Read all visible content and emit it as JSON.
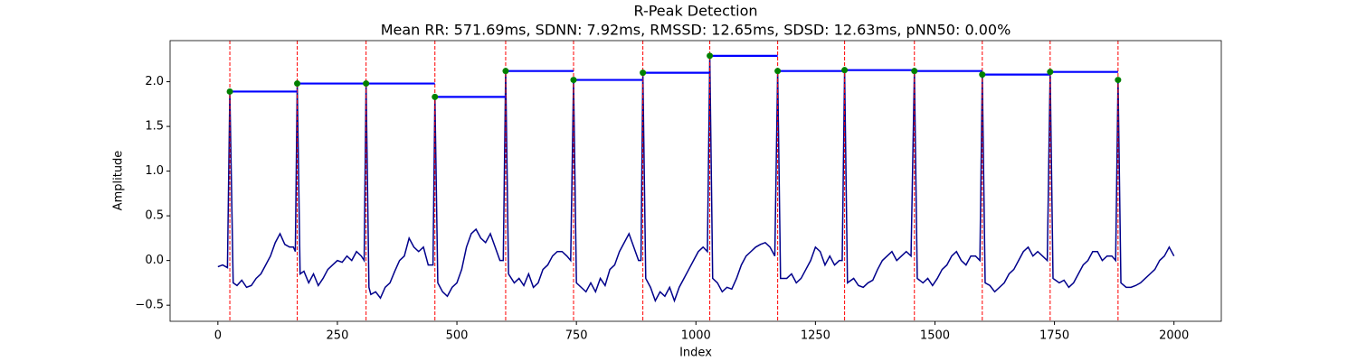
{
  "chart_data": {
    "type": "line",
    "title": "R-Peak Detection",
    "subtitle": "Mean RR: 571.69ms, SDNN: 7.92ms, RMSSD: 12.65ms, SDSD: 12.63ms, pNN50: 0.00%",
    "xlabel": "Index",
    "ylabel": "Amplitude",
    "xlim": [
      -100,
      2099
    ],
    "ylim": [
      -0.68,
      2.46
    ],
    "xticks": [
      0,
      250,
      500,
      750,
      1000,
      1250,
      1500,
      1750,
      2000
    ],
    "yticks": [
      {
        "value": -0.5,
        "label": "−0.5"
      },
      {
        "value": 0,
        "label": "0.0"
      },
      0.5,
      {
        "value": 1,
        "label": "1.0"
      },
      1.5,
      {
        "value": 2,
        "label": "2.0"
      }
    ],
    "signal": {
      "color": "#00008b",
      "x": [
        0,
        10,
        20,
        25,
        32,
        40,
        50,
        60,
        70,
        80,
        90,
        100,
        110,
        120,
        130,
        140,
        150,
        158,
        162,
        166,
        172,
        180,
        190,
        200,
        210,
        220,
        230,
        240,
        250,
        260,
        270,
        280,
        290,
        300,
        306,
        310,
        316,
        320,
        330,
        340,
        350,
        360,
        370,
        380,
        390,
        400,
        410,
        420,
        430,
        440,
        450,
        454,
        460,
        470,
        480,
        490,
        500,
        510,
        520,
        530,
        540,
        550,
        560,
        570,
        580,
        590,
        597,
        602,
        608,
        620,
        630,
        640,
        650,
        660,
        670,
        680,
        690,
        700,
        710,
        720,
        730,
        738,
        744,
        750,
        760,
        770,
        780,
        790,
        800,
        810,
        820,
        830,
        840,
        850,
        860,
        870,
        880,
        885,
        889,
        895,
        905,
        915,
        925,
        935,
        945,
        955,
        965,
        975,
        985,
        995,
        1005,
        1015,
        1024,
        1029,
        1035,
        1045,
        1055,
        1065,
        1075,
        1085,
        1095,
        1105,
        1115,
        1125,
        1135,
        1145,
        1155,
        1165,
        1171,
        1177,
        1190,
        1200,
        1210,
        1220,
        1230,
        1240,
        1250,
        1260,
        1270,
        1280,
        1290,
        1300,
        1306,
        1311,
        1317,
        1330,
        1340,
        1350,
        1360,
        1370,
        1380,
        1390,
        1400,
        1410,
        1420,
        1430,
        1440,
        1450,
        1457,
        1463,
        1475,
        1485,
        1495,
        1505,
        1515,
        1525,
        1535,
        1545,
        1555,
        1565,
        1575,
        1585,
        1594,
        1599,
        1605,
        1615,
        1625,
        1635,
        1645,
        1655,
        1665,
        1675,
        1685,
        1695,
        1705,
        1715,
        1725,
        1735,
        1741,
        1747,
        1760,
        1770,
        1780,
        1790,
        1800,
        1810,
        1820,
        1830,
        1840,
        1850,
        1860,
        1870,
        1878,
        1883,
        1889,
        1900,
        1910,
        1920,
        1930,
        1940,
        1950,
        1960,
        1970,
        1980,
        1990,
        2000
      ],
      "values": [
        -0.07,
        -0.05,
        -0.08,
        1.89,
        -0.25,
        -0.28,
        -0.22,
        -0.3,
        -0.28,
        -0.2,
        -0.15,
        -0.05,
        0.05,
        0.2,
        0.3,
        0.18,
        0.15,
        0.15,
        0.1,
        1.98,
        -0.15,
        -0.12,
        -0.25,
        -0.15,
        -0.28,
        -0.2,
        -0.1,
        -0.05,
        0,
        -0.02,
        0.05,
        0,
        0.1,
        0.05,
        0,
        1.98,
        -0.3,
        -0.38,
        -0.35,
        -0.42,
        -0.3,
        -0.25,
        -0.12,
        0,
        0.05,
        0.25,
        0.15,
        0.1,
        0.15,
        -0.05,
        -0.05,
        1.83,
        -0.25,
        -0.35,
        -0.4,
        -0.3,
        -0.25,
        -0.1,
        0.15,
        0.3,
        0.35,
        0.25,
        0.2,
        0.3,
        0.15,
        0,
        0,
        2.12,
        -0.15,
        -0.25,
        -0.2,
        -0.28,
        -0.15,
        -0.3,
        -0.25,
        -0.1,
        -0.05,
        0.05,
        0.1,
        0.1,
        0.05,
        0,
        2.02,
        -0.25,
        -0.3,
        -0.35,
        -0.25,
        -0.35,
        -0.2,
        -0.28,
        -0.1,
        -0.05,
        0.1,
        0.2,
        0.3,
        0.15,
        0,
        0,
        2.1,
        -0.2,
        -0.3,
        -0.45,
        -0.35,
        -0.4,
        -0.3,
        -0.45,
        -0.3,
        -0.2,
        -0.1,
        0,
        0.1,
        0.15,
        0.1,
        2.29,
        -0.2,
        -0.25,
        -0.35,
        -0.3,
        -0.32,
        -0.2,
        -0.05,
        0.05,
        0.1,
        0.15,
        0.18,
        0.2,
        0.15,
        0.05,
        2.12,
        -0.2,
        -0.2,
        -0.15,
        -0.25,
        -0.2,
        -0.1,
        0,
        0.15,
        0.1,
        -0.05,
        0.05,
        -0.05,
        0,
        0,
        2.13,
        -0.25,
        -0.2,
        -0.28,
        -0.3,
        -0.25,
        -0.22,
        -0.1,
        0,
        0.05,
        0.1,
        0,
        0.05,
        0.1,
        0.05,
        2.12,
        -0.2,
        -0.25,
        -0.2,
        -0.28,
        -0.2,
        -0.1,
        -0.05,
        0.05,
        0.1,
        0,
        -0.05,
        0.05,
        0.05,
        0,
        2.08,
        -0.25,
        -0.28,
        -0.35,
        -0.3,
        -0.25,
        -0.15,
        -0.1,
        0,
        0.1,
        0.15,
        0.05,
        0.1,
        0.05,
        0,
        2.11,
        -0.2,
        -0.25,
        -0.22,
        -0.3,
        -0.25,
        -0.15,
        -0.05,
        0,
        0.1,
        0.1,
        0,
        0.05,
        0.05,
        0,
        2.02,
        -0.25,
        -0.3,
        -0.3,
        -0.28,
        -0.25,
        -0.2,
        -0.15,
        -0.1,
        0,
        0.05,
        0.15,
        0.05
      ]
    },
    "peaks": {
      "color": "#008000",
      "line_color": "#ff0000",
      "rr_color": "#0000ff",
      "x": [
        25,
        166,
        310,
        454,
        602,
        744,
        889,
        1029,
        1171,
        1311,
        1457,
        1599,
        1741,
        1883
      ],
      "values": [
        1.89,
        1.98,
        1.98,
        1.83,
        2.12,
        2.02,
        2.1,
        2.29,
        2.12,
        2.13,
        2.12,
        2.08,
        2.11,
        2.02
      ]
    }
  }
}
